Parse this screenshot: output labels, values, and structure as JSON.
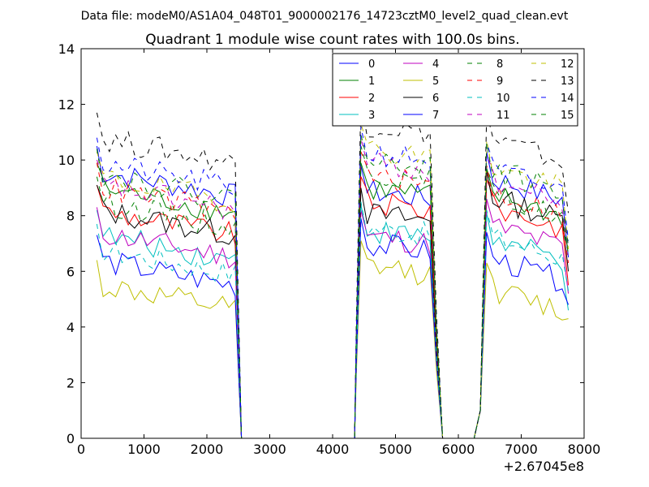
{
  "header": "Data file: modeM0/AS1A04_048T01_9000002176_14723cztM0_level2_quad_clean.evt",
  "chart_data": {
    "type": "line",
    "title": "Quadrant 1 module wise count rates with 100.0s bins.",
    "xlabel": "",
    "ylabel": "",
    "x_offset_label": "+2.67045e8",
    "xlim": [
      0,
      8000
    ],
    "ylim": [
      0,
      14
    ],
    "xticks": [
      0,
      1000,
      2000,
      3000,
      4000,
      5000,
      6000,
      7000,
      8000
    ],
    "yticks": [
      0,
      2,
      4,
      6,
      8,
      10,
      12,
      14
    ],
    "grid": false,
    "legend_position": "top-right",
    "legend_columns": 4,
    "segments": [
      {
        "x_start": 250,
        "x_end": 2450
      },
      {
        "x_start": 4450,
        "x_end": 5550
      },
      {
        "x_start": 6450,
        "x_end": 7750
      }
    ],
    "gap_points": [
      [
        2550,
        0
      ],
      [
        4350,
        0
      ],
      [
        4375,
        1.5
      ],
      [
        5650,
        3.5
      ],
      [
        5750,
        0
      ],
      [
        6250,
        0
      ],
      [
        6350,
        1
      ]
    ],
    "series": [
      {
        "name": "0",
        "color": "#0000ff",
        "dash": "solid",
        "levels": [
          9.6,
          8.9,
          9.4
        ],
        "end": 6.5
      },
      {
        "name": "1",
        "color": "#008000",
        "dash": "solid",
        "levels": [
          9.0,
          9.0,
          8.8
        ],
        "end": 6.8
      },
      {
        "name": "2",
        "color": "#ff0000",
        "dash": "solid",
        "levels": [
          8.2,
          8.5,
          8.4
        ],
        "end": 5.5
      },
      {
        "name": "3",
        "color": "#00bfbf",
        "dash": "solid",
        "levels": [
          7.3,
          7.5,
          7.2
        ],
        "end": 4.6
      },
      {
        "name": "4",
        "color": "#bf00bf",
        "dash": "solid",
        "levels": [
          7.4,
          7.3,
          7.7
        ],
        "end": 5.2
      },
      {
        "name": "5",
        "color": "#bfbf00",
        "dash": "solid",
        "levels": [
          5.5,
          6.2,
          5.4
        ],
        "end": 4.3
      },
      {
        "name": "6",
        "color": "#000000",
        "dash": "solid",
        "levels": [
          8.2,
          8.1,
          8.7
        ],
        "end": 6.0
      },
      {
        "name": "7",
        "color": "#0000ff",
        "dash": "solid",
        "levels": [
          6.4,
          7.0,
          6.5
        ],
        "end": 4.8
      },
      {
        "name": "8",
        "color": "#008000",
        "dash": "dashed",
        "levels": [
          8.5,
          9.6,
          8.8
        ],
        "end": 6.6
      },
      {
        "name": "9",
        "color": "#ff0000",
        "dash": "dashed",
        "levels": [
          9.0,
          9.4,
          8.9
        ],
        "end": 6.3
      },
      {
        "name": "10",
        "color": "#00bfbf",
        "dash": "dashed",
        "levels": [
          6.8,
          7.6,
          7.3
        ],
        "end": 5.3
      },
      {
        "name": "11",
        "color": "#bf00bf",
        "dash": "dashed",
        "levels": [
          9.1,
          9.9,
          9.3
        ],
        "end": 6.9
      },
      {
        "name": "12",
        "color": "#bfbf00",
        "dash": "dashed",
        "levels": [
          9.4,
          10.4,
          9.8
        ],
        "end": 6.8
      },
      {
        "name": "13",
        "color": "#000000",
        "dash": "dashed",
        "levels": [
          10.8,
          11.3,
          10.8
        ],
        "end": 8.1
      },
      {
        "name": "14",
        "color": "#0000ff",
        "dash": "dashed",
        "levels": [
          9.9,
          10.3,
          9.7
        ],
        "end": 7.1
      },
      {
        "name": "15",
        "color": "#008000",
        "dash": "dashed",
        "levels": [
          9.5,
          10.0,
          9.7
        ],
        "end": 6.9
      }
    ]
  }
}
